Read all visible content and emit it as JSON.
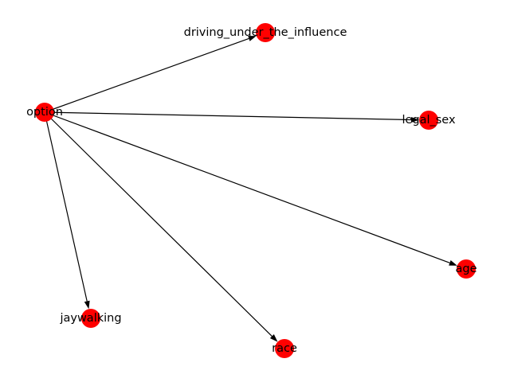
{
  "graph": {
    "node_color": "#ff0000",
    "edge_color": "#000000",
    "label_color": "#000000",
    "nodes": [
      {
        "id": "option",
        "label": "option"
      },
      {
        "id": "driving_under_the_influence",
        "label": "driving_under_the_influence"
      },
      {
        "id": "legal_sex",
        "label": "legal_sex"
      },
      {
        "id": "age",
        "label": "age"
      },
      {
        "id": "jaywalking",
        "label": "jaywalking"
      },
      {
        "id": "race",
        "label": "race"
      }
    ],
    "edges": [
      {
        "source": "option",
        "target": "driving_under_the_influence"
      },
      {
        "source": "option",
        "target": "legal_sex"
      },
      {
        "source": "option",
        "target": "age"
      },
      {
        "source": "option",
        "target": "jaywalking"
      },
      {
        "source": "option",
        "target": "race"
      }
    ]
  }
}
